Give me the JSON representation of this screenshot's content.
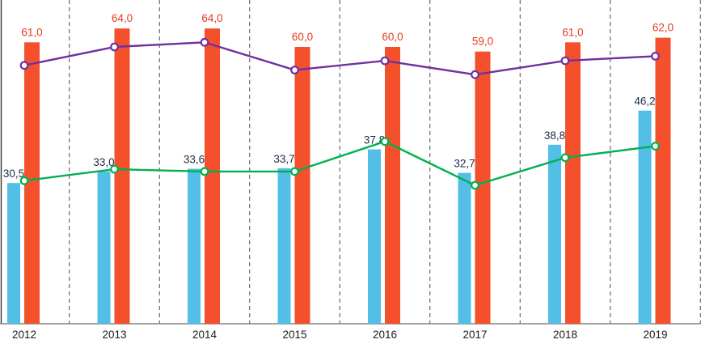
{
  "chart_data": {
    "type": "bar+line",
    "title": "",
    "xlabel": "",
    "ylabel": "",
    "legend": "none",
    "grid": "vertical-dashed",
    "ylim": [
      0,
      70
    ],
    "categories": [
      "2012",
      "2013",
      "2014",
      "2015",
      "2016",
      "2017",
      "2018",
      "2019"
    ],
    "series": [
      {
        "name": "blue-bars",
        "type": "bar",
        "color": "#53BEE6",
        "label_color": "#1A2B49",
        "values": [
          30.5,
          33.0,
          33.6,
          33.7,
          37.8,
          32.7,
          38.8,
          46.2
        ],
        "labels": [
          "30,5",
          "33,0",
          "33,6",
          "33,7",
          "37,8",
          "32,7",
          "38,8",
          "46,2"
        ]
      },
      {
        "name": "red-bars",
        "type": "bar",
        "color": "#F4502C",
        "label_color": "#E63A1E",
        "values": [
          61.0,
          64.0,
          64.0,
          60.0,
          60.0,
          59.0,
          61.0,
          62.0
        ],
        "labels": [
          "61,0",
          "64,0",
          "64,0",
          "60,0",
          "60,0",
          "59,0",
          "61,0",
          "62,0"
        ]
      },
      {
        "name": "purple-line",
        "type": "line",
        "color": "#7030A0",
        "values": [
          56,
          60,
          61,
          55,
          57,
          54,
          57,
          58
        ]
      },
      {
        "name": "green-line",
        "type": "line",
        "color": "#00B050",
        "values": [
          31,
          33.5,
          33,
          33,
          39.5,
          30,
          36,
          38.5
        ]
      }
    ],
    "axis_color": "#808080",
    "grid_color": "#4A4A4A",
    "tick_label_color": "#1A1A1A"
  }
}
